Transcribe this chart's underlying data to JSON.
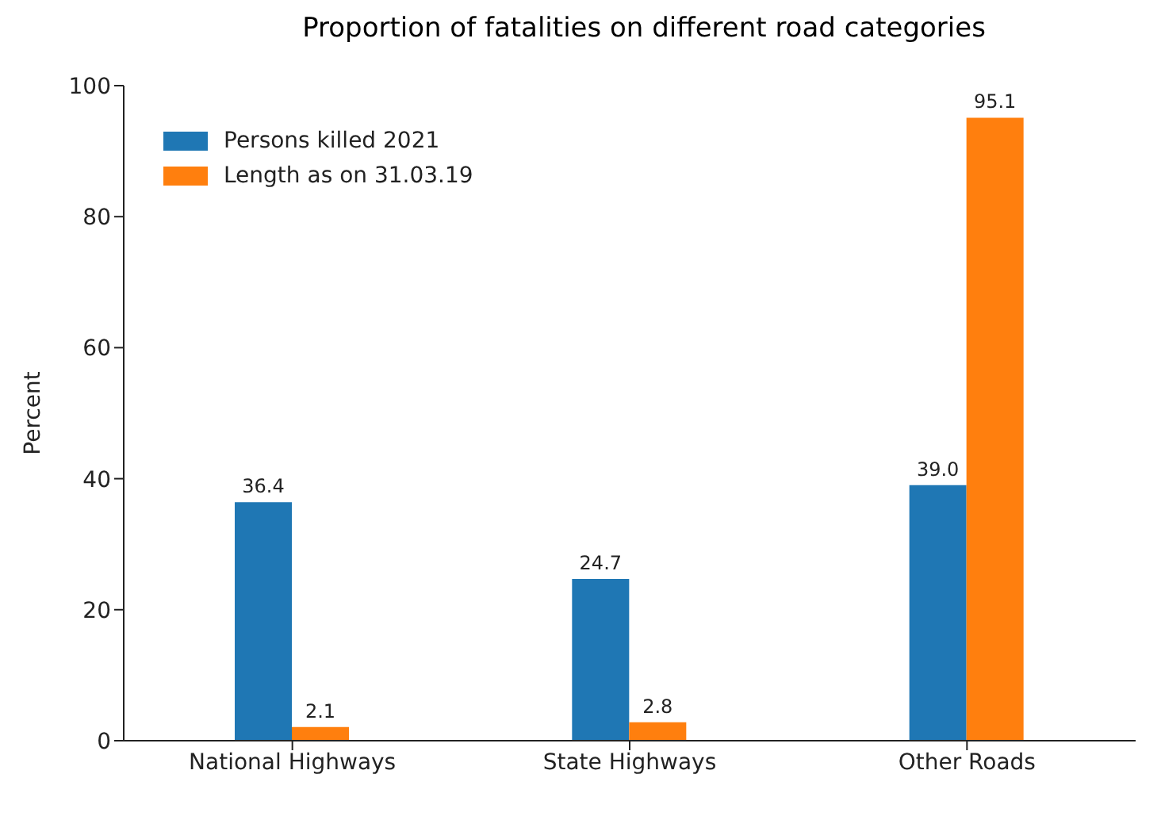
{
  "chart_data": {
    "type": "bar",
    "title": "Proportion of fatalities on different road categories",
    "ylabel": "Percent",
    "categories": [
      "National Highways",
      "State Highways",
      "Other Roads"
    ],
    "series": [
      {
        "name": "Persons killed 2021",
        "color": "#1f77b4",
        "values": [
          36.4,
          24.7,
          39.0
        ],
        "value_labels": [
          "36.4",
          "24.7",
          "39.0"
        ]
      },
      {
        "name": "Length as on 31.03.19",
        "color": "#ff7f0e",
        "values": [
          2.1,
          2.8,
          95.1
        ],
        "value_labels": [
          "2.1",
          "2.8",
          "95.1"
        ]
      }
    ],
    "ylim": [
      0,
      100
    ],
    "yticks": [
      0,
      20,
      40,
      60,
      80,
      100
    ],
    "grid": false,
    "legend": "top left"
  }
}
